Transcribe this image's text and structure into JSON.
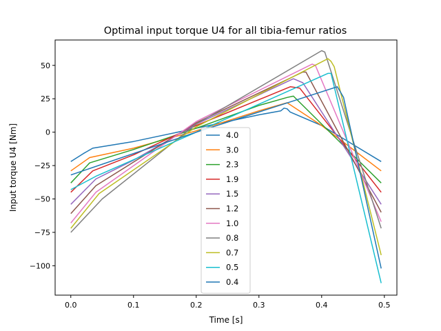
{
  "chart_data": {
    "type": "line",
    "title": "Optimal input torque U4 for all tibia-femur ratios",
    "xlabel": "Time [s]",
    "ylabel": "Input torque U4 [Nm]",
    "xlim": [
      -0.025,
      0.52
    ],
    "ylim": [
      -122,
      69
    ],
    "xticks": [
      0.0,
      0.1,
      0.2,
      0.3,
      0.4,
      0.5
    ],
    "xtick_labels": [
      "0.0",
      "0.1",
      "0.2",
      "0.3",
      "0.4",
      "0.5"
    ],
    "yticks": [
      -100,
      -75,
      -50,
      -25,
      0,
      25,
      50
    ],
    "ytick_labels": [
      "−100",
      "−75",
      "−50",
      "−25",
      "0",
      "25",
      "50"
    ],
    "grid": false,
    "legend_position": "bottom-center",
    "series": [
      {
        "name": "4.0",
        "color": "#1f77b4",
        "x": [
          0.0,
          0.02,
          0.035,
          0.1,
          0.2,
          0.3,
          0.335,
          0.34,
          0.345,
          0.35,
          0.4,
          0.495
        ],
        "y": [
          -22,
          -16,
          -12,
          -7,
          3,
          13,
          16,
          18,
          17.5,
          15,
          5,
          -22
        ]
      },
      {
        "name": "3.0",
        "color": "#ff7f0e",
        "x": [
          0.0,
          0.03,
          0.1,
          0.2,
          0.3,
          0.345,
          0.4,
          0.495
        ],
        "y": [
          -29,
          -19,
          -12,
          1,
          16,
          22,
          5,
          -29
        ]
      },
      {
        "name": "2.3",
        "color": "#2ca02c",
        "x": [
          0.0,
          0.03,
          0.1,
          0.2,
          0.3,
          0.345,
          0.355,
          0.495
        ],
        "y": [
          -38,
          -23,
          -13,
          3,
          20,
          26,
          27,
          -38
        ]
      },
      {
        "name": "1.9",
        "color": "#d62728",
        "x": [
          0.0,
          0.035,
          0.1,
          0.2,
          0.35,
          0.365,
          0.495
        ],
        "y": [
          -45,
          -29,
          -17,
          5,
          34,
          33,
          -45
        ]
      },
      {
        "name": "1.5",
        "color": "#9467bd",
        "x": [
          0.0,
          0.04,
          0.1,
          0.2,
          0.355,
          0.37,
          0.495
        ],
        "y": [
          -54,
          -35,
          -21,
          6,
          40,
          37,
          -54
        ]
      },
      {
        "name": "1.2",
        "color": "#8c564b",
        "x": [
          0.0,
          0.04,
          0.2,
          0.37,
          0.375,
          0.495
        ],
        "y": [
          -61,
          -40,
          7,
          45,
          45,
          -60
        ]
      },
      {
        "name": "1.0",
        "color": "#e377c2",
        "x": [
          0.0,
          0.04,
          0.2,
          0.385,
          0.39,
          0.495
        ],
        "y": [
          -68,
          -45,
          8,
          51,
          50,
          -67
        ]
      },
      {
        "name": "0.8",
        "color": "#7f7f7f",
        "x": [
          0.0,
          0.05,
          0.2,
          0.4,
          0.405,
          0.495
        ],
        "y": [
          -75,
          -50,
          6,
          61,
          60,
          -72
        ]
      },
      {
        "name": "0.7",
        "color": "#bcbd22",
        "x": [
          0.0,
          0.045,
          0.2,
          0.41,
          0.415,
          0.42,
          0.495
        ],
        "y": [
          -72,
          -46,
          4,
          55,
          53,
          49,
          -92
        ]
      },
      {
        "name": "0.5",
        "color": "#17becf",
        "x": [
          0.0,
          0.04,
          0.2,
          0.41,
          0.415,
          0.495
        ],
        "y": [
          -43,
          -33,
          0,
          44,
          44,
          -113
        ]
      },
      {
        "name": "0.4",
        "color": "#1f77b4",
        "x": [
          0.0,
          0.2,
          0.425,
          0.43,
          0.435,
          0.495
        ],
        "y": [
          -32,
          0,
          34,
          30,
          26,
          -102
        ]
      }
    ]
  }
}
